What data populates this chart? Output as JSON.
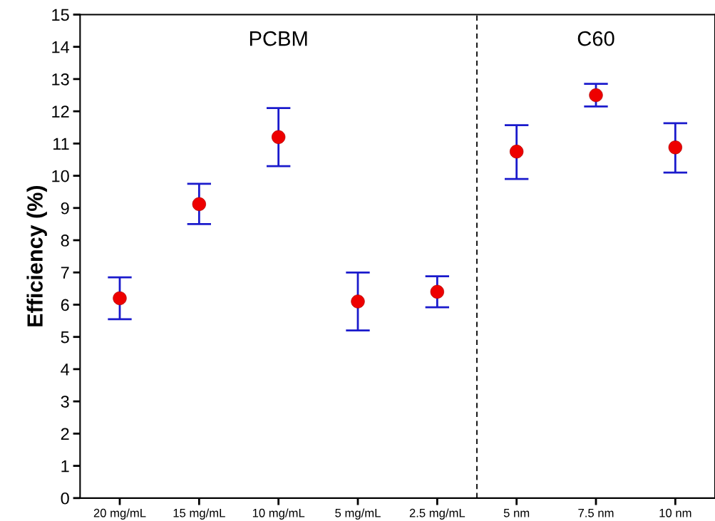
{
  "chart_data": {
    "type": "scatter",
    "ylabel": "Efficiency (%)",
    "categories": [
      "20 mg/mL",
      "15 mg/mL",
      "10 mg/mL",
      "5 mg/mL",
      "2.5 mg/mL",
      "5 nm",
      "7.5 nm",
      "10 nm"
    ],
    "series": [
      {
        "color": "#ee0000",
        "values": [
          6.2,
          9.12,
          11.2,
          6.1,
          6.4,
          10.75,
          12.5,
          10.88
        ],
        "errors": [
          [
            5.55,
            6.85
          ],
          [
            8.5,
            9.75
          ],
          [
            10.3,
            12.1
          ],
          [
            5.2,
            7.0
          ],
          [
            5.92,
            6.88
          ],
          [
            9.9,
            11.57
          ],
          [
            12.15,
            12.85
          ],
          [
            10.1,
            11.63
          ]
        ]
      }
    ],
    "ylim": [
      0,
      15
    ],
    "yticks": [
      0,
      1,
      2,
      3,
      4,
      5,
      6,
      7,
      8,
      9,
      10,
      11,
      12,
      13,
      14,
      15
    ],
    "annotations": [
      "PCBM",
      "C60"
    ],
    "marker": "circle",
    "grid": false,
    "legend": false
  }
}
